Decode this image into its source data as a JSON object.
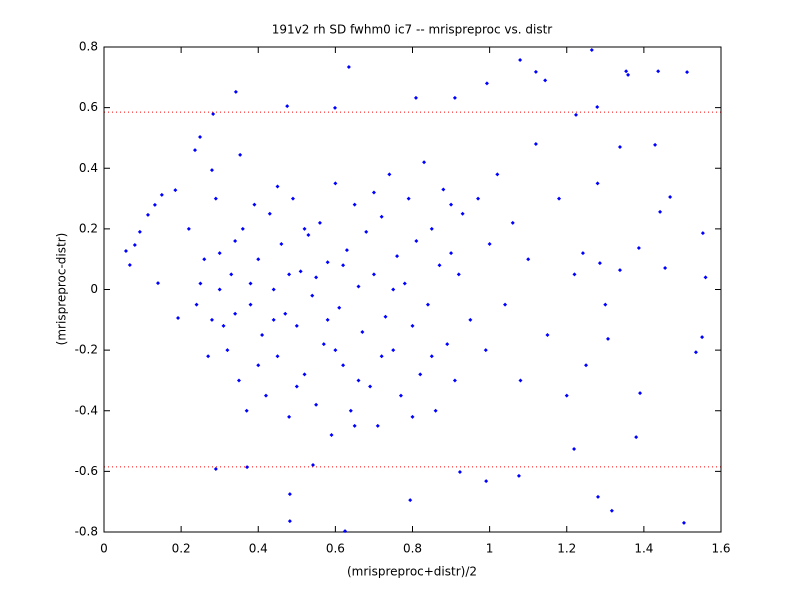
{
  "chart_data": {
    "type": "scatter",
    "title": "191v2 rh SD fwhm0 ic7 -- mrispreproc vs. distr",
    "xlabel": "(mrispreproc+distr)/2",
    "ylabel": "(mrispreproc-distr)",
    "xlim": [
      0,
      1.6
    ],
    "ylim": [
      -0.8,
      0.8
    ],
    "xticks": [
      0,
      0.2,
      0.4,
      0.6,
      0.8,
      1,
      1.2,
      1.4,
      1.6
    ],
    "yticks": [
      -0.8,
      -0.6,
      -0.4,
      -0.2,
      0,
      0.2,
      0.4,
      0.6,
      0.8
    ],
    "color": "#0000ff",
    "hlines": [
      0.585,
      -0.585
    ],
    "hline_color": "#ff0000",
    "x": [
      1.12,
      1.265,
      1.437,
      1.512,
      1.354,
      1.359,
      0.635,
      1.079,
      0.993,
      1.144,
      0.809,
      0.91,
      0.342,
      0.283,
      0.475,
      0.599,
      1.224,
      1.279,
      1.338,
      1.429,
      1.468,
      1.442,
      1.553,
      1.56,
      1.535,
      1.551,
      1.504,
      1.317,
      1.281,
      0.482,
      0.625,
      0.482,
      0.29,
      0.371,
      0.542,
      0.794,
      0.923,
      0.991,
      1.076,
      1.219,
      1.38,
      1.39,
      1.307,
      1.338,
      1.286,
      1.242,
      1.387,
      1.455,
      0.057,
      0.067,
      0.08,
      0.093,
      0.114,
      0.132,
      0.15,
      0.14,
      0.192,
      0.185,
      0.236,
      0.249,
      0.353,
      0.28,
      0.25,
      0.28,
      0.3,
      0.32,
      0.33,
      0.35,
      0.36,
      0.38,
      0.4,
      0.41,
      0.42,
      0.43,
      0.44,
      0.45,
      0.46,
      0.47,
      0.48,
      0.49,
      0.5,
      0.51,
      0.52,
      0.53,
      0.54,
      0.55,
      0.56,
      0.57,
      0.58,
      0.59,
      0.6,
      0.61,
      0.62,
      0.63,
      0.64,
      0.65,
      0.66,
      0.67,
      0.68,
      0.69,
      0.7,
      0.71,
      0.72,
      0.73,
      0.74,
      0.75,
      0.76,
      0.77,
      0.78,
      0.79,
      0.8,
      0.81,
      0.82,
      0.83,
      0.84,
      0.85,
      0.86,
      0.87,
      0.88,
      0.89,
      0.9,
      0.91,
      0.92,
      0.93,
      0.95,
      0.97,
      0.99,
      1.0,
      1.02,
      1.04,
      1.06,
      1.08,
      1.1,
      1.12,
      1.15,
      1.18,
      1.2,
      1.22,
      1.25,
      1.28,
      1.3,
      0.22,
      0.24,
      0.26,
      0.27,
      0.29,
      0.31,
      0.34,
      0.37,
      0.39,
      0.4,
      0.45,
      0.5,
      0.55,
      0.6,
      0.65,
      0.7,
      0.75,
      0.8,
      0.85,
      0.9,
      0.58,
      0.62,
      0.66,
      0.72,
      0.48,
      0.52,
      0.44,
      0.38,
      0.34,
      0.3
    ],
    "y": [
      0.718,
      0.79,
      0.72,
      0.717,
      0.72,
      0.708,
      0.734,
      0.757,
      0.68,
      0.69,
      0.632,
      0.632,
      0.652,
      0.579,
      0.605,
      0.599,
      0.576,
      0.602,
      0.47,
      0.477,
      0.305,
      0.256,
      0.186,
      0.04,
      -0.207,
      -0.157,
      -0.77,
      -0.73,
      -0.684,
      -0.764,
      -0.797,
      -0.675,
      -0.592,
      -0.586,
      -0.579,
      -0.695,
      -0.602,
      -0.632,
      -0.615,
      -0.526,
      -0.487,
      -0.342,
      -0.163,
      0.064,
      0.087,
      0.12,
      0.137,
      0.071,
      0.127,
      0.081,
      0.147,
      0.19,
      0.246,
      0.279,
      0.312,
      0.021,
      -0.094,
      0.328,
      0.46,
      0.503,
      0.444,
      0.394,
      0.02,
      -0.1,
      0.12,
      -0.2,
      0.05,
      -0.3,
      0.2,
      -0.05,
      0.1,
      -0.15,
      -0.35,
      0.25,
      0.0,
      -0.22,
      0.15,
      -0.08,
      -0.42,
      0.3,
      -0.12,
      0.06,
      -0.28,
      0.18,
      -0.02,
      -0.38,
      0.22,
      -0.18,
      0.09,
      -0.48,
      0.35,
      -0.06,
      -0.25,
      0.13,
      -0.4,
      0.28,
      0.01,
      -0.14,
      0.19,
      -0.32,
      0.05,
      -0.45,
      0.24,
      -0.09,
      0.38,
      -0.2,
      0.11,
      -0.35,
      0.02,
      0.3,
      -0.12,
      0.16,
      -0.28,
      0.42,
      -0.05,
      0.2,
      -0.4,
      0.08,
      0.33,
      -0.18,
      0.12,
      -0.3,
      0.05,
      0.25,
      -0.1,
      0.3,
      -0.2,
      0.15,
      0.38,
      -0.05,
      0.22,
      -0.3,
      0.1,
      0.48,
      -0.15,
      0.3,
      -0.35,
      0.05,
      -0.25,
      0.35,
      -0.05,
      0.2,
      -0.05,
      0.1,
      -0.22,
      0.3,
      -0.12,
      0.16,
      -0.4,
      0.28,
      -0.25,
      0.34,
      -0.32,
      0.04,
      -0.2,
      -0.45,
      0.32,
      0.0,
      -0.42,
      -0.22,
      0.28,
      -0.1,
      0.08,
      -0.3,
      -0.22,
      0.05,
      0.2,
      -0.1,
      0.02,
      -0.08,
      0.0
    ]
  }
}
